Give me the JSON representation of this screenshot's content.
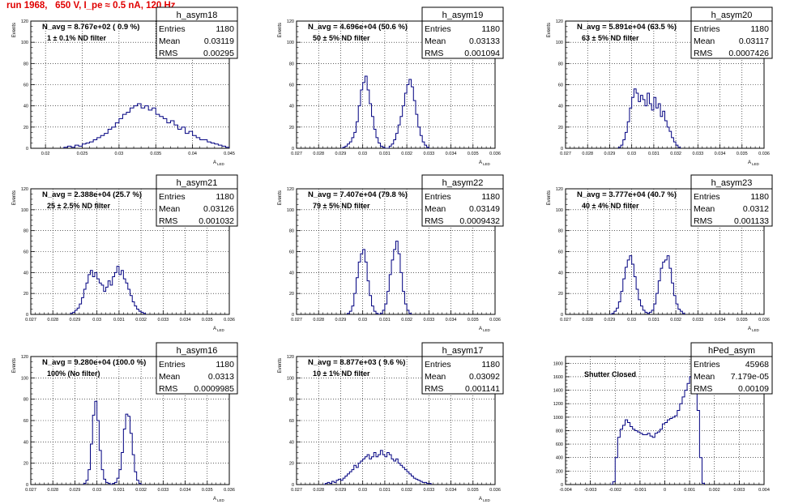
{
  "page_title": "run 1968,   650 V, I_pe ≈ 0.5 nA, 120 Hz",
  "chart_data": [
    {
      "type": "histogram",
      "name": "h_asym18",
      "ylabel": "Events",
      "xlabel": "A",
      "xlabel_sub": "LED",
      "xlim": [
        0.018,
        0.045
      ],
      "ylim": [
        0,
        120
      ],
      "xticks": [
        0.02,
        0.025,
        0.03,
        0.035,
        0.04,
        0.045
      ],
      "xtick_labels": [
        "0.02",
        "0.025",
        "0.03",
        "0.035",
        "0.04",
        "0.045"
      ],
      "yticks": [
        0,
        20,
        40,
        60,
        80,
        100,
        120
      ],
      "annotation": "N_avg = 8.767e+02 ( 0.9 %)",
      "filter_label": "1 ± 0.1% ND filter",
      "stats": {
        "entries": "1180",
        "mean": "0.03119",
        "rms": "0.00295"
      },
      "bins": {
        "start": 0.0225,
        "width": 0.0005,
        "counts": [
          1,
          2,
          1,
          3,
          2,
          4,
          5,
          6,
          8,
          10,
          12,
          14,
          18,
          20,
          24,
          28,
          32,
          34,
          38,
          40,
          42,
          38,
          40,
          36,
          38,
          32,
          30,
          28,
          24,
          26,
          22,
          18,
          20,
          14,
          16,
          12,
          10,
          8,
          8,
          6,
          5,
          4,
          3,
          2,
          1
        ]
      }
    },
    {
      "type": "histogram",
      "name": "h_asym19",
      "ylabel": "Events",
      "xlabel": "A",
      "xlabel_sub": "LED",
      "xlim": [
        0.027,
        0.036
      ],
      "ylim": [
        0,
        120
      ],
      "xticks": [
        0.027,
        0.028,
        0.029,
        0.03,
        0.031,
        0.032,
        0.033,
        0.034,
        0.035,
        0.036
      ],
      "xtick_labels": [
        "0.027",
        "0.028",
        "0.029",
        "0.03",
        "0.031",
        "0.032",
        "0.033",
        "0.034",
        "0.035",
        "0.036"
      ],
      "yticks": [
        0,
        20,
        40,
        60,
        80,
        100,
        120
      ],
      "annotation": "N_avg = 4.696e+04 (50.6 %)",
      "filter_label": "50 ± 5% ND filter",
      "stats": {
        "entries": "1180",
        "mean": "0.03133",
        "rms": "0.001094"
      },
      "bins": {
        "start": 0.029,
        "width": 0.0001,
        "counts": [
          0,
          1,
          2,
          4,
          6,
          10,
          15,
          25,
          40,
          55,
          62,
          68,
          55,
          42,
          30,
          18,
          10,
          5,
          2,
          1,
          0,
          0,
          2,
          4,
          8,
          14,
          22,
          30,
          40,
          52,
          60,
          65,
          58,
          45,
          32,
          20,
          12,
          6,
          3,
          1
        ]
      }
    },
    {
      "type": "histogram",
      "name": "h_asym20",
      "ylabel": "Events",
      "xlabel": "A",
      "xlabel_sub": "LED",
      "xlim": [
        0.027,
        0.036
      ],
      "ylim": [
        0,
        120
      ],
      "xticks": [
        0.027,
        0.028,
        0.029,
        0.03,
        0.031,
        0.032,
        0.033,
        0.034,
        0.035,
        0.036
      ],
      "xtick_labels": [
        "0.027",
        "0.028",
        "0.029",
        "0.03",
        "0.031",
        "0.032",
        "0.033",
        "0.034",
        "0.035",
        "0.036"
      ],
      "yticks": [
        0,
        20,
        40,
        60,
        80,
        100,
        120
      ],
      "annotation": "N_avg = 5.891e+04 (63.5 %)",
      "filter_label": "63 ± 5% ND filter",
      "stats": {
        "entries": "1180",
        "mean": "0.03117",
        "rms": "0.0007426"
      },
      "bins": {
        "start": 0.0294,
        "width": 0.0001,
        "counts": [
          1,
          3,
          8,
          15,
          25,
          38,
          48,
          56,
          52,
          44,
          50,
          46,
          40,
          52,
          42,
          36,
          48,
          38,
          42,
          30,
          35,
          26,
          20,
          16,
          10,
          6,
          3,
          1
        ]
      }
    },
    {
      "type": "histogram",
      "name": "h_asym21",
      "ylabel": "Events",
      "xlabel": "A",
      "xlabel_sub": "LED",
      "xlim": [
        0.027,
        0.036
      ],
      "ylim": [
        0,
        120
      ],
      "xticks": [
        0.027,
        0.028,
        0.029,
        0.03,
        0.031,
        0.032,
        0.033,
        0.034,
        0.035,
        0.036
      ],
      "xtick_labels": [
        "0.027",
        "0.028",
        "0.029",
        "0.03",
        "0.031",
        "0.032",
        "0.033",
        "0.034",
        "0.035",
        "0.036"
      ],
      "yticks": [
        0,
        20,
        40,
        60,
        80,
        100,
        120
      ],
      "annotation": "N_avg = 2.388e+04 (25.7 %)",
      "filter_label": "25 ± 2.5% ND filter",
      "stats": {
        "entries": "1180",
        "mean": "0.03126",
        "rms": "0.001032"
      },
      "bins": {
        "start": 0.0288,
        "width": 0.0001,
        "counts": [
          1,
          2,
          4,
          6,
          10,
          16,
          24,
          30,
          38,
          42,
          36,
          40,
          34,
          30,
          28,
          22,
          26,
          32,
          28,
          36,
          40,
          46,
          38,
          42,
          34,
          30,
          24,
          18,
          12,
          8,
          5,
          3,
          2,
          1
        ]
      }
    },
    {
      "type": "histogram",
      "name": "h_asym22",
      "ylabel": "Events",
      "xlabel": "A",
      "xlabel_sub": "LED",
      "xlim": [
        0.027,
        0.036
      ],
      "ylim": [
        0,
        120
      ],
      "xticks": [
        0.027,
        0.028,
        0.029,
        0.03,
        0.031,
        0.032,
        0.033,
        0.034,
        0.035,
        0.036
      ],
      "xtick_labels": [
        "0.027",
        "0.028",
        "0.029",
        "0.03",
        "0.031",
        "0.032",
        "0.033",
        "0.034",
        "0.035",
        "0.036"
      ],
      "yticks": [
        0,
        20,
        40,
        60,
        80,
        100,
        120
      ],
      "annotation": "N_avg = 7.407e+04 (79.8 %)",
      "filter_label": "79 ± 5% ND filter",
      "stats": {
        "entries": "1180",
        "mean": "0.03149",
        "rms": "0.0009432"
      },
      "bins": {
        "start": 0.0293,
        "width": 0.0001,
        "counts": [
          1,
          3,
          8,
          20,
          35,
          50,
          58,
          62,
          50,
          32,
          18,
          8,
          3,
          1,
          0,
          1,
          4,
          10,
          22,
          38,
          52,
          62,
          70,
          58,
          40,
          22,
          10,
          4,
          1
        ]
      }
    },
    {
      "type": "histogram",
      "name": "h_asym23",
      "ylabel": "Events",
      "xlabel": "A",
      "xlabel_sub": "LED",
      "xlim": [
        0.027,
        0.036
      ],
      "ylim": [
        0,
        120
      ],
      "xticks": [
        0.027,
        0.028,
        0.029,
        0.03,
        0.031,
        0.032,
        0.033,
        0.034,
        0.035,
        0.036
      ],
      "xtick_labels": [
        "0.027",
        "0.028",
        "0.029",
        "0.03",
        "0.031",
        "0.032",
        "0.033",
        "0.034",
        "0.035",
        "0.036"
      ],
      "yticks": [
        0,
        20,
        40,
        60,
        80,
        100,
        120
      ],
      "annotation": "N_avg = 3.777e+04 (40.7 %)",
      "filter_label": "40 ± 4% ND filter",
      "stats": {
        "entries": "1180",
        "mean": "0.0312",
        "rms": "0.001133"
      },
      "bins": {
        "start": 0.029,
        "width": 0.0001,
        "counts": [
          0,
          1,
          3,
          6,
          12,
          22,
          34,
          45,
          52,
          56,
          48,
          36,
          24,
          14,
          8,
          4,
          2,
          1,
          2,
          4,
          10,
          20,
          32,
          44,
          50,
          52,
          56,
          44,
          30,
          18,
          10,
          5,
          3,
          1
        ]
      }
    },
    {
      "type": "histogram",
      "name": "h_asym16",
      "ylabel": "Events",
      "xlabel": "A",
      "xlabel_sub": "LED",
      "xlim": [
        0.027,
        0.036
      ],
      "ylim": [
        0,
        120
      ],
      "xticks": [
        0.027,
        0.028,
        0.029,
        0.03,
        0.031,
        0.032,
        0.033,
        0.034,
        0.035,
        0.036
      ],
      "xtick_labels": [
        "0.027",
        "0.028",
        "0.029",
        "0.03",
        "0.031",
        "0.032",
        "0.033",
        "0.034",
        "0.035",
        "0.036"
      ],
      "yticks": [
        0,
        20,
        40,
        60,
        80,
        100,
        120
      ],
      "annotation": "N_avg = 9.280e+04 (100.0 %)",
      "filter_label": "100% (No filter)",
      "stats": {
        "entries": "1180",
        "mean": "0.0313",
        "rms": "0.0009985"
      },
      "bins": {
        "start": 0.0294,
        "width": 0.0001,
        "counts": [
          1,
          4,
          14,
          38,
          65,
          78,
          60,
          32,
          14,
          5,
          2,
          1,
          0,
          1,
          2,
          6,
          14,
          30,
          52,
          66,
          64,
          48,
          28,
          12,
          4,
          1
        ]
      }
    },
    {
      "type": "histogram",
      "name": "h_asym17",
      "ylabel": "Events",
      "xlabel": "A",
      "xlabel_sub": "LED",
      "xlim": [
        0.027,
        0.036
      ],
      "ylim": [
        0,
        120
      ],
      "xticks": [
        0.027,
        0.028,
        0.029,
        0.03,
        0.031,
        0.032,
        0.033,
        0.034,
        0.035,
        0.036
      ],
      "xtick_labels": [
        "0.027",
        "0.028",
        "0.029",
        "0.03",
        "0.031",
        "0.032",
        "0.033",
        "0.034",
        "0.035",
        "0.036"
      ],
      "yticks": [
        0,
        20,
        40,
        60,
        80,
        100,
        120
      ],
      "annotation": "N_avg = 8.877e+03 ( 9.6 %)",
      "filter_label": "10 ± 1% ND filter",
      "stats": {
        "entries": "1180",
        "mean": "0.03092",
        "rms": "0.001141"
      },
      "bins": {
        "start": 0.0282,
        "width": 0.0001,
        "counts": [
          0,
          1,
          2,
          1,
          3,
          2,
          4,
          5,
          4,
          6,
          8,
          10,
          12,
          14,
          18,
          16,
          20,
          22,
          24,
          26,
          28,
          24,
          26,
          30,
          26,
          28,
          32,
          28,
          26,
          30,
          28,
          24,
          22,
          24,
          20,
          18,
          16,
          14,
          12,
          10,
          8,
          6,
          5,
          4,
          3,
          2,
          2,
          1,
          1
        ]
      }
    },
    {
      "type": "histogram",
      "name": "hPed_asym",
      "ylabel": "",
      "xlabel": "",
      "xlabel_sub": "",
      "xlim": [
        -0.004,
        0.004
      ],
      "ylim": [
        0,
        1900
      ],
      "xticks": [
        -0.004,
        -0.003,
        -0.002,
        -0.001,
        0,
        0.001,
        0.002,
        0.003,
        0.004
      ],
      "xtick_labels": [
        "-0.004",
        "-0.003",
        "-0.002",
        "-0.001",
        "0",
        "0.001",
        "0.002",
        "0.003",
        "0.004"
      ],
      "yticks": [
        0,
        200,
        400,
        600,
        800,
        1000,
        1200,
        1400,
        1600,
        1800
      ],
      "annotation": "",
      "filter_label": "Shutter Closed",
      "stats": {
        "entries": "45968",
        "mean": "7.179e-05",
        "rms": "0.00109"
      },
      "bins": {
        "start": -0.0022,
        "width": 0.0001,
        "counts": [
          0,
          40,
          400,
          700,
          820,
          880,
          960,
          920,
          860,
          820,
          800,
          780,
          760,
          740,
          740,
          760,
          720,
          700,
          760,
          780,
          820,
          900,
          920,
          960,
          980,
          1000,
          1020,
          1100,
          1200,
          1300,
          1400,
          1500,
          1600,
          1800,
          1550,
          1100,
          400,
          20
        ]
      }
    }
  ]
}
